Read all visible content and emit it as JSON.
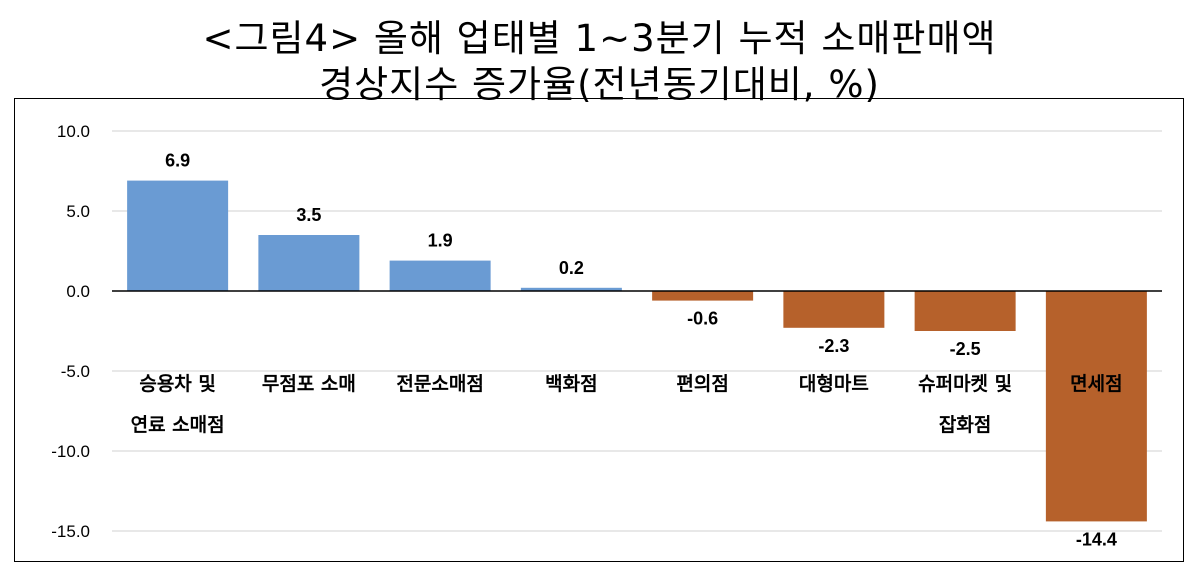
{
  "chart_data": {
    "type": "bar",
    "title": "<그림4> 올해 업태별 1~3분기 누적 소매판매액",
    "subtitle": "경상지수 증가율(전년동기대비, %)",
    "categories": [
      [
        "승용차 및",
        "연료 소매점"
      ],
      [
        "무점포 소매"
      ],
      [
        "전문소매점"
      ],
      [
        "백화점"
      ],
      [
        "편의점"
      ],
      [
        "대형마트"
      ],
      [
        "슈퍼마켓 및",
        "잡화점"
      ],
      [
        "면세점"
      ]
    ],
    "values": [
      6.9,
      3.5,
      1.9,
      0.2,
      -0.6,
      -2.3,
      -2.5,
      -14.4
    ],
    "data_labels": [
      "6.9",
      "3.5",
      "1.9",
      "0.2",
      "-0.6",
      "-2.3",
      "-2.5",
      "-14.4"
    ],
    "yticks": [
      "10.0",
      "5.0",
      "0.0",
      "-5.0",
      "-10.0",
      "-15.0"
    ],
    "ytick_values": [
      10,
      5,
      0,
      -5,
      -10,
      -15
    ],
    "ylim": [
      -15,
      10
    ],
    "grid": true,
    "colors": {
      "positive": "#6a9bd3",
      "negative": "#b6612b",
      "grid": "#d9d9d9",
      "axis": "#000000"
    }
  }
}
